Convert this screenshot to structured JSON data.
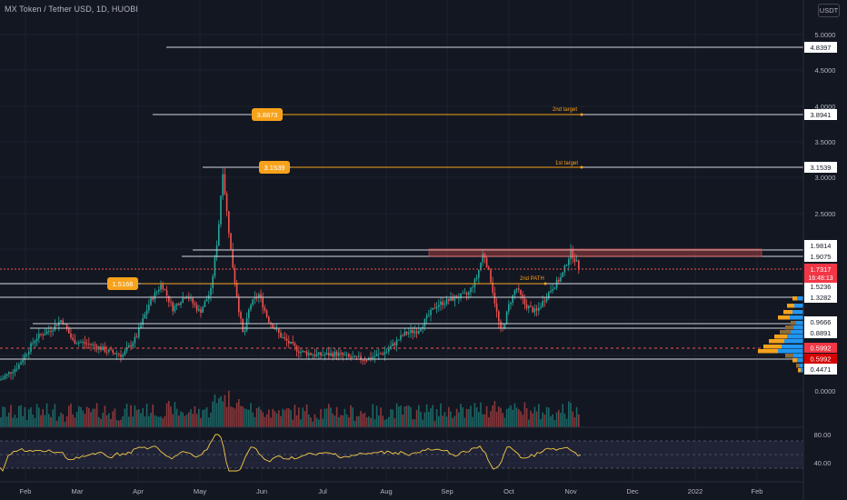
{
  "header": {
    "title": "MX Token / Tether USD, 1D, HUOBI",
    "currency_button": "USDT"
  },
  "colors": {
    "background": "#131722",
    "axis_text": "#b2b5be",
    "grid": "#1e222d",
    "up_candle": "#26a69a",
    "down_candle": "#ef5350",
    "orange_level": "#f7a21b",
    "white_level": "#d1d4dc",
    "rsi_line": "#f7c948",
    "rsi_band": "#2a2e45",
    "volume_profile_up": "#f7a21b",
    "volume_profile_down": "#2196f3",
    "current_price_label": "#f23645"
  },
  "price_axis": {
    "ticks": [
      "5.0000",
      "4.5000",
      "4.0000",
      "3.5000",
      "3.0000",
      "2.5000",
      "0.0000"
    ]
  },
  "time_axis": {
    "labels": [
      "Feb",
      "Mar",
      "Apr",
      "May",
      "Jun",
      "Jul",
      "Aug",
      "Sep",
      "Oct",
      "Nov",
      "Dec",
      "2022",
      "Feb"
    ]
  },
  "levels": {
    "white": [
      "4.8397",
      "3.8941",
      "3.1539",
      "1.9814",
      "1.9075",
      "1.5236",
      "1.3282",
      "0.9666",
      "0.8891",
      "0.4471"
    ],
    "current_price": "1.7317",
    "countdown": "16:48:13",
    "red_level": "0.5992"
  },
  "annotations": {
    "second_target_box": "3.8873",
    "first_target_box": "3.1539",
    "left_level_box": "1.5166",
    "second_target_text": "2nd target",
    "first_target_text": "1st target",
    "second_path_text": "2nd PATH"
  },
  "rsi": {
    "ticks": [
      "80.00",
      "40.00"
    ]
  },
  "chart_data": {
    "type": "candlestick",
    "symbol": "MX Token / Tether USD",
    "interval": "1D",
    "exchange": "HUOBI",
    "y_ticks": [
      5.0,
      4.5,
      4.0,
      3.5,
      3.0,
      2.5,
      0.0
    ],
    "price_path": [
      {
        "x": "Feb",
        "y": 0.15
      },
      {
        "x": "Mar",
        "y": 1.0
      },
      {
        "x": "Apr",
        "y": 0.6
      },
      {
        "x": "Apr",
        "y": 1.5
      },
      {
        "x": "May",
        "y": 1.35
      },
      {
        "x": "May",
        "y": 3.1
      },
      {
        "x": "Jun",
        "y": 0.8
      },
      {
        "x": "Jul",
        "y": 0.5
      },
      {
        "x": "Aug",
        "y": 0.5
      },
      {
        "x": "Sep",
        "y": 1.9
      },
      {
        "x": "Oct",
        "y": 1.0
      },
      {
        "x": "Nov",
        "y": 1.95
      },
      {
        "x": "Nov",
        "y": 1.73
      }
    ],
    "rsi_ticks": [
      80,
      40
    ]
  }
}
